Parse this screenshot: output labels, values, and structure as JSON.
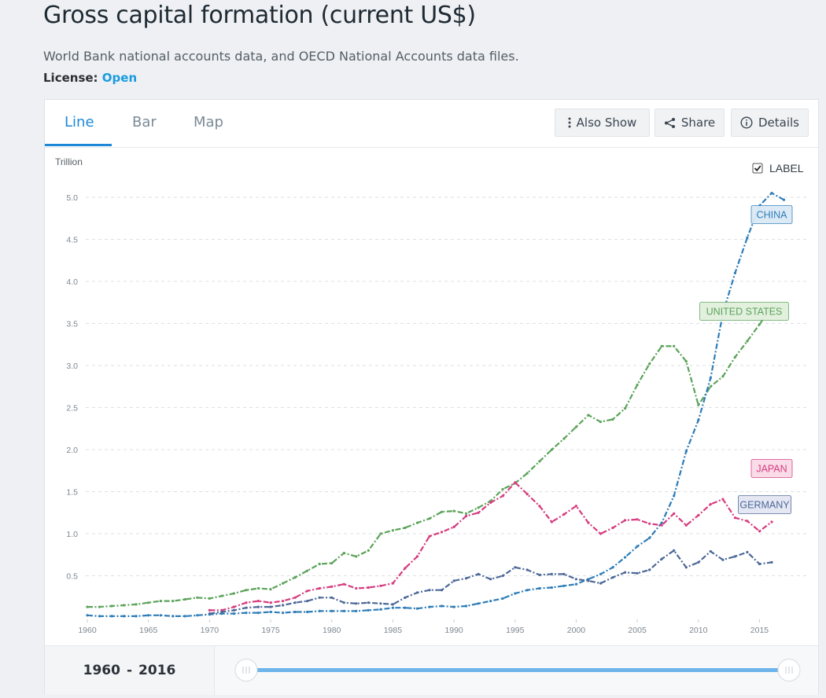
{
  "header": {
    "title": "Gross capital formation (current US$)",
    "subtitle": "World Bank national accounts data, and OECD National Accounts data files.",
    "license_label": "License:",
    "license_value": "Open"
  },
  "tabs": [
    {
      "label": "Line",
      "active": true
    },
    {
      "label": "Bar",
      "active": false
    },
    {
      "label": "Map",
      "active": false
    }
  ],
  "toolbar": {
    "also_show": "Also Show",
    "share": "Share",
    "details": "Details"
  },
  "legend_toggle": {
    "label": "LABEL",
    "checked": true
  },
  "range": {
    "start": "1960",
    "sep": "-",
    "end": "2016"
  },
  "chart_data": {
    "type": "line",
    "unit_label": "Trillion",
    "xlim": [
      1960,
      2016
    ],
    "ylim": [
      0,
      5.0
    ],
    "y_ticks": [
      "0.5",
      "1.0",
      "1.5",
      "2.0",
      "2.5",
      "3.0",
      "3.5",
      "4.0",
      "4.5",
      "5.0"
    ],
    "x_ticks": [
      "1960",
      "1965",
      "1970",
      "1975",
      "1980",
      "1985",
      "1990",
      "1995",
      "2000",
      "2005",
      "2010",
      "2015"
    ],
    "grid": true,
    "series": [
      {
        "name": "UNITED STATES",
        "color": "#5ba35a",
        "label_bg": "#e2f0dd",
        "start_year": 1960,
        "values": [
          0.13,
          0.13,
          0.14,
          0.15,
          0.16,
          0.18,
          0.2,
          0.2,
          0.22,
          0.24,
          0.23,
          0.26,
          0.29,
          0.33,
          0.35,
          0.34,
          0.41,
          0.48,
          0.56,
          0.64,
          0.65,
          0.77,
          0.73,
          0.8,
          1.0,
          1.04,
          1.07,
          1.13,
          1.18,
          1.26,
          1.27,
          1.24,
          1.31,
          1.39,
          1.53,
          1.6,
          1.72,
          1.86,
          2.0,
          2.13,
          2.27,
          2.41,
          2.33,
          2.36,
          2.49,
          2.77,
          3.02,
          3.23,
          3.23,
          3.05,
          2.53,
          2.75,
          2.87,
          3.1,
          3.29,
          3.49,
          3.7,
          3.67
        ]
      },
      {
        "name": "CHINA",
        "color": "#2f7db8",
        "label_bg": "#dbe9f5",
        "start_year": 1960,
        "values": [
          0.03,
          0.02,
          0.02,
          0.02,
          0.02,
          0.03,
          0.03,
          0.02,
          0.02,
          0.03,
          0.04,
          0.05,
          0.05,
          0.06,
          0.06,
          0.07,
          0.06,
          0.07,
          0.07,
          0.08,
          0.08,
          0.08,
          0.08,
          0.09,
          0.1,
          0.12,
          0.12,
          0.11,
          0.13,
          0.14,
          0.13,
          0.14,
          0.17,
          0.2,
          0.23,
          0.29,
          0.33,
          0.35,
          0.36,
          0.38,
          0.4,
          0.46,
          0.52,
          0.6,
          0.72,
          0.85,
          0.95,
          1.13,
          1.45,
          1.98,
          2.35,
          2.85,
          3.62,
          4.1,
          4.52,
          4.9,
          5.05,
          4.97
        ]
      },
      {
        "name": "JAPAN",
        "color": "#d63c7f",
        "label_bg": "#fadbe8",
        "start_year": 1970,
        "values": [
          0.09,
          0.09,
          0.13,
          0.18,
          0.2,
          0.18,
          0.2,
          0.24,
          0.32,
          0.35,
          0.37,
          0.4,
          0.35,
          0.36,
          0.38,
          0.41,
          0.59,
          0.73,
          0.97,
          1.02,
          1.08,
          1.21,
          1.25,
          1.37,
          1.45,
          1.61,
          1.47,
          1.33,
          1.14,
          1.23,
          1.33,
          1.13,
          1.0,
          1.07,
          1.16,
          1.17,
          1.12,
          1.1,
          1.24,
          1.1,
          1.22,
          1.35,
          1.41,
          1.19,
          1.15,
          1.03,
          1.14
        ]
      },
      {
        "name": "GERMANY",
        "color": "#4c6898",
        "label_bg": "#e4e6f3",
        "start_year": 1970,
        "values": [
          0.05,
          0.07,
          0.09,
          0.12,
          0.13,
          0.13,
          0.15,
          0.18,
          0.2,
          0.24,
          0.24,
          0.18,
          0.17,
          0.18,
          0.17,
          0.16,
          0.24,
          0.3,
          0.33,
          0.33,
          0.44,
          0.47,
          0.52,
          0.46,
          0.5,
          0.6,
          0.57,
          0.51,
          0.52,
          0.52,
          0.46,
          0.44,
          0.41,
          0.48,
          0.54,
          0.53,
          0.57,
          0.7,
          0.8,
          0.6,
          0.66,
          0.79,
          0.69,
          0.73,
          0.78,
          0.64,
          0.66
        ]
      }
    ]
  }
}
